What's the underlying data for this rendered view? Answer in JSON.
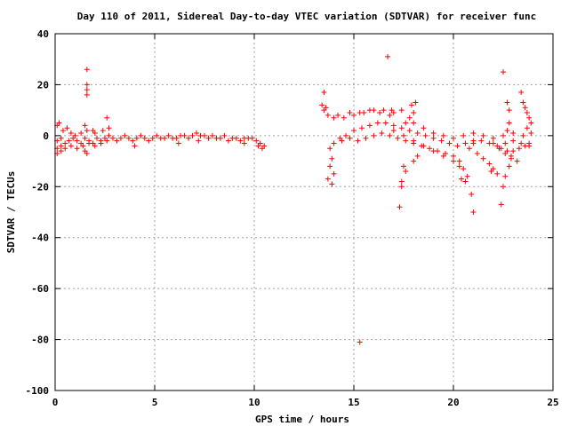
{
  "chart_data": {
    "type": "scatter",
    "title": "Day 110 of 2011, Sidereal Day-to-day VTEC variation (SDTVAR) for receiver func",
    "xlabel": "GPS time / hours",
    "ylabel": "SDTVAR / TECUs",
    "xlim": [
      0,
      25
    ],
    "ylim": [
      -100,
      40
    ],
    "xticks": [
      0,
      5,
      10,
      15,
      20,
      25
    ],
    "yticks": [
      -100,
      -80,
      -60,
      -40,
      -20,
      0,
      20,
      40
    ],
    "grid": true,
    "marker": "+",
    "color": "#ff0000",
    "points": [
      [
        0.1,
        -2
      ],
      [
        0.3,
        -1
      ],
      [
        0.5,
        -3
      ],
      [
        0.7,
        -2
      ],
      [
        0.9,
        -1
      ],
      [
        1.1,
        -2
      ],
      [
        1.3,
        -3
      ],
      [
        1.5,
        -1
      ],
      [
        1.7,
        -2
      ],
      [
        1.9,
        -3
      ],
      [
        2.1,
        -1
      ],
      [
        2.3,
        -2
      ],
      [
        2.5,
        -1
      ],
      [
        2.7,
        0
      ],
      [
        2.9,
        -1
      ],
      [
        3.1,
        -2
      ],
      [
        3.3,
        -1
      ],
      [
        3.5,
        0
      ],
      [
        3.7,
        -1
      ],
      [
        3.9,
        -2
      ],
      [
        4.1,
        -1
      ],
      [
        4.3,
        0
      ],
      [
        4.5,
        -1
      ],
      [
        4.7,
        -2
      ],
      [
        4.9,
        -1
      ],
      [
        5.1,
        0
      ],
      [
        5.3,
        -1
      ],
      [
        5.5,
        -1
      ],
      [
        5.7,
        0
      ],
      [
        5.9,
        -1
      ],
      [
        6.1,
        -1
      ],
      [
        6.3,
        0
      ],
      [
        6.5,
        0
      ],
      [
        6.7,
        -1
      ],
      [
        6.9,
        0
      ],
      [
        7.1,
        1
      ],
      [
        7.3,
        0
      ],
      [
        7.5,
        0
      ],
      [
        7.7,
        -1
      ],
      [
        7.9,
        0
      ],
      [
        8.1,
        -1
      ],
      [
        8.3,
        -1
      ],
      [
        8.5,
        0
      ],
      [
        8.7,
        -2
      ],
      [
        8.9,
        -1
      ],
      [
        9.1,
        -1
      ],
      [
        9.3,
        -2
      ],
      [
        9.5,
        -1
      ],
      [
        9.7,
        -1
      ],
      [
        0.1,
        -5
      ],
      [
        0.3,
        -4
      ],
      [
        0.5,
        -5
      ],
      [
        0.8,
        -4
      ],
      [
        1.1,
        -5
      ],
      [
        1.4,
        -4
      ],
      [
        1.7,
        -3
      ],
      [
        2.0,
        -4
      ],
      [
        2.3,
        -3
      ],
      [
        2.6,
        -2
      ],
      [
        0.1,
        4
      ],
      [
        0.2,
        5
      ],
      [
        0.4,
        2
      ],
      [
        0.6,
        3
      ],
      [
        0.8,
        1
      ],
      [
        1.0,
        0
      ],
      [
        1.3,
        1
      ],
      [
        1.6,
        2
      ],
      [
        2.0,
        1
      ],
      [
        2.4,
        2
      ],
      [
        0.1,
        -7
      ],
      [
        0.3,
        -6
      ],
      [
        1.5,
        -6
      ],
      [
        1.6,
        -7
      ],
      [
        1.6,
        26
      ],
      [
        1.6,
        20
      ],
      [
        1.6,
        18
      ],
      [
        1.6,
        16
      ],
      [
        1.5,
        4
      ],
      [
        2.6,
        7
      ],
      [
        2.7,
        3
      ],
      [
        1.9,
        2
      ],
      [
        4.0,
        -4
      ],
      [
        6.2,
        -3
      ],
      [
        7.2,
        -2
      ],
      [
        9.5,
        -3
      ],
      [
        9.9,
        -1
      ],
      [
        10.1,
        -2
      ],
      [
        10.3,
        -3
      ],
      [
        10.5,
        -4
      ],
      [
        10.2,
        -4
      ],
      [
        10.4,
        -5
      ],
      [
        13.4,
        12
      ],
      [
        13.5,
        10
      ],
      [
        13.7,
        8
      ],
      [
        14.0,
        7
      ],
      [
        14.5,
        7
      ],
      [
        15.0,
        8
      ],
      [
        15.5,
        9
      ],
      [
        16.0,
        10
      ],
      [
        16.5,
        10
      ],
      [
        17.0,
        9
      ],
      [
        13.5,
        17
      ],
      [
        13.6,
        11
      ],
      [
        14.2,
        8
      ],
      [
        14.8,
        9
      ],
      [
        15.3,
        9
      ],
      [
        15.8,
        10
      ],
      [
        16.3,
        9
      ],
      [
        16.8,
        8
      ],
      [
        13.8,
        -5
      ],
      [
        14.0,
        -3
      ],
      [
        14.3,
        -1
      ],
      [
        14.6,
        0
      ],
      [
        15.0,
        2
      ],
      [
        15.4,
        3
      ],
      [
        15.8,
        4
      ],
      [
        16.2,
        5
      ],
      [
        16.6,
        5
      ],
      [
        17.0,
        4
      ],
      [
        17.4,
        3
      ],
      [
        17.8,
        2
      ],
      [
        18.2,
        1
      ],
      [
        18.6,
        0
      ],
      [
        19.0,
        -1
      ],
      [
        19.4,
        -2
      ],
      [
        19.8,
        -3
      ],
      [
        20.2,
        -4
      ],
      [
        20.6,
        -3
      ],
      [
        21.0,
        -2
      ],
      [
        21.4,
        -2
      ],
      [
        21.8,
        -3
      ],
      [
        22.2,
        -4
      ],
      [
        22.6,
        -3
      ],
      [
        23.0,
        -2
      ],
      [
        23.4,
        -3
      ],
      [
        23.8,
        -4
      ],
      [
        14.4,
        -2
      ],
      [
        14.8,
        -1
      ],
      [
        15.2,
        -2
      ],
      [
        15.6,
        -1
      ],
      [
        16.0,
        0
      ],
      [
        16.4,
        1
      ],
      [
        16.8,
        0
      ],
      [
        17.2,
        -1
      ],
      [
        17.6,
        -2
      ],
      [
        18.0,
        -3
      ],
      [
        18.4,
        -4
      ],
      [
        18.8,
        -5
      ],
      [
        19.2,
        -6
      ],
      [
        19.6,
        -7
      ],
      [
        20.0,
        -8
      ],
      [
        20.3,
        -10
      ],
      [
        20.5,
        -13
      ],
      [
        20.7,
        -16
      ],
      [
        20.6,
        -18
      ],
      [
        20.4,
        -17
      ],
      [
        17.0,
        2
      ],
      [
        17.5,
        0
      ],
      [
        18.0,
        -2
      ],
      [
        18.5,
        -4
      ],
      [
        19.0,
        -6
      ],
      [
        19.5,
        -8
      ],
      [
        20.0,
        -10
      ],
      [
        20.3,
        -12
      ],
      [
        18.0,
        5
      ],
      [
        18.5,
        3
      ],
      [
        19.0,
        1
      ],
      [
        19.5,
        0
      ],
      [
        20.0,
        -1
      ],
      [
        20.5,
        0
      ],
      [
        21.0,
        1
      ],
      [
        21.5,
        0
      ],
      [
        22.0,
        -1
      ],
      [
        22.5,
        0
      ],
      [
        23.0,
        1
      ],
      [
        23.5,
        0
      ],
      [
        20.8,
        -5
      ],
      [
        21.0,
        -3
      ],
      [
        21.2,
        -7
      ],
      [
        21.5,
        -9
      ],
      [
        21.8,
        -11
      ],
      [
        22.0,
        -13
      ],
      [
        22.2,
        -15
      ],
      [
        21.9,
        -14
      ],
      [
        22.0,
        -3
      ],
      [
        22.3,
        -5
      ],
      [
        22.6,
        -7
      ],
      [
        22.9,
        -9
      ],
      [
        23.2,
        -10
      ],
      [
        22.4,
        -5
      ],
      [
        22.7,
        -6
      ],
      [
        23.0,
        -6
      ],
      [
        23.3,
        -5
      ],
      [
        23.6,
        -4
      ],
      [
        23.8,
        -3
      ],
      [
        23.4,
        17
      ],
      [
        23.5,
        13
      ],
      [
        23.6,
        11
      ],
      [
        23.7,
        9
      ],
      [
        23.8,
        7
      ],
      [
        23.9,
        5
      ],
      [
        23.7,
        3
      ],
      [
        23.9,
        1
      ],
      [
        22.5,
        25
      ],
      [
        22.7,
        13
      ],
      [
        22.8,
        10
      ],
      [
        22.8,
        5
      ],
      [
        22.7,
        2
      ],
      [
        17.9,
        12
      ],
      [
        18.0,
        9
      ],
      [
        17.8,
        7
      ],
      [
        18.1,
        13
      ],
      [
        17.6,
        5
      ],
      [
        16.7,
        31
      ],
      [
        15.3,
        -81
      ],
      [
        13.9,
        -9
      ],
      [
        13.8,
        -12
      ],
      [
        13.7,
        -17
      ],
      [
        13.9,
        -19
      ],
      [
        14.0,
        -15
      ],
      [
        16.9,
        10
      ],
      [
        17.4,
        10
      ],
      [
        17.4,
        -18
      ],
      [
        17.4,
        -20
      ],
      [
        17.3,
        -28
      ],
      [
        17.5,
        -12
      ],
      [
        17.6,
        -14
      ],
      [
        18.0,
        -10
      ],
      [
        18.2,
        -8
      ],
      [
        20.9,
        -23
      ],
      [
        21.0,
        -30
      ],
      [
        22.4,
        -27
      ],
      [
        22.5,
        -20
      ],
      [
        22.6,
        -16
      ],
      [
        22.8,
        -12
      ],
      [
        22.9,
        -8
      ]
    ]
  }
}
